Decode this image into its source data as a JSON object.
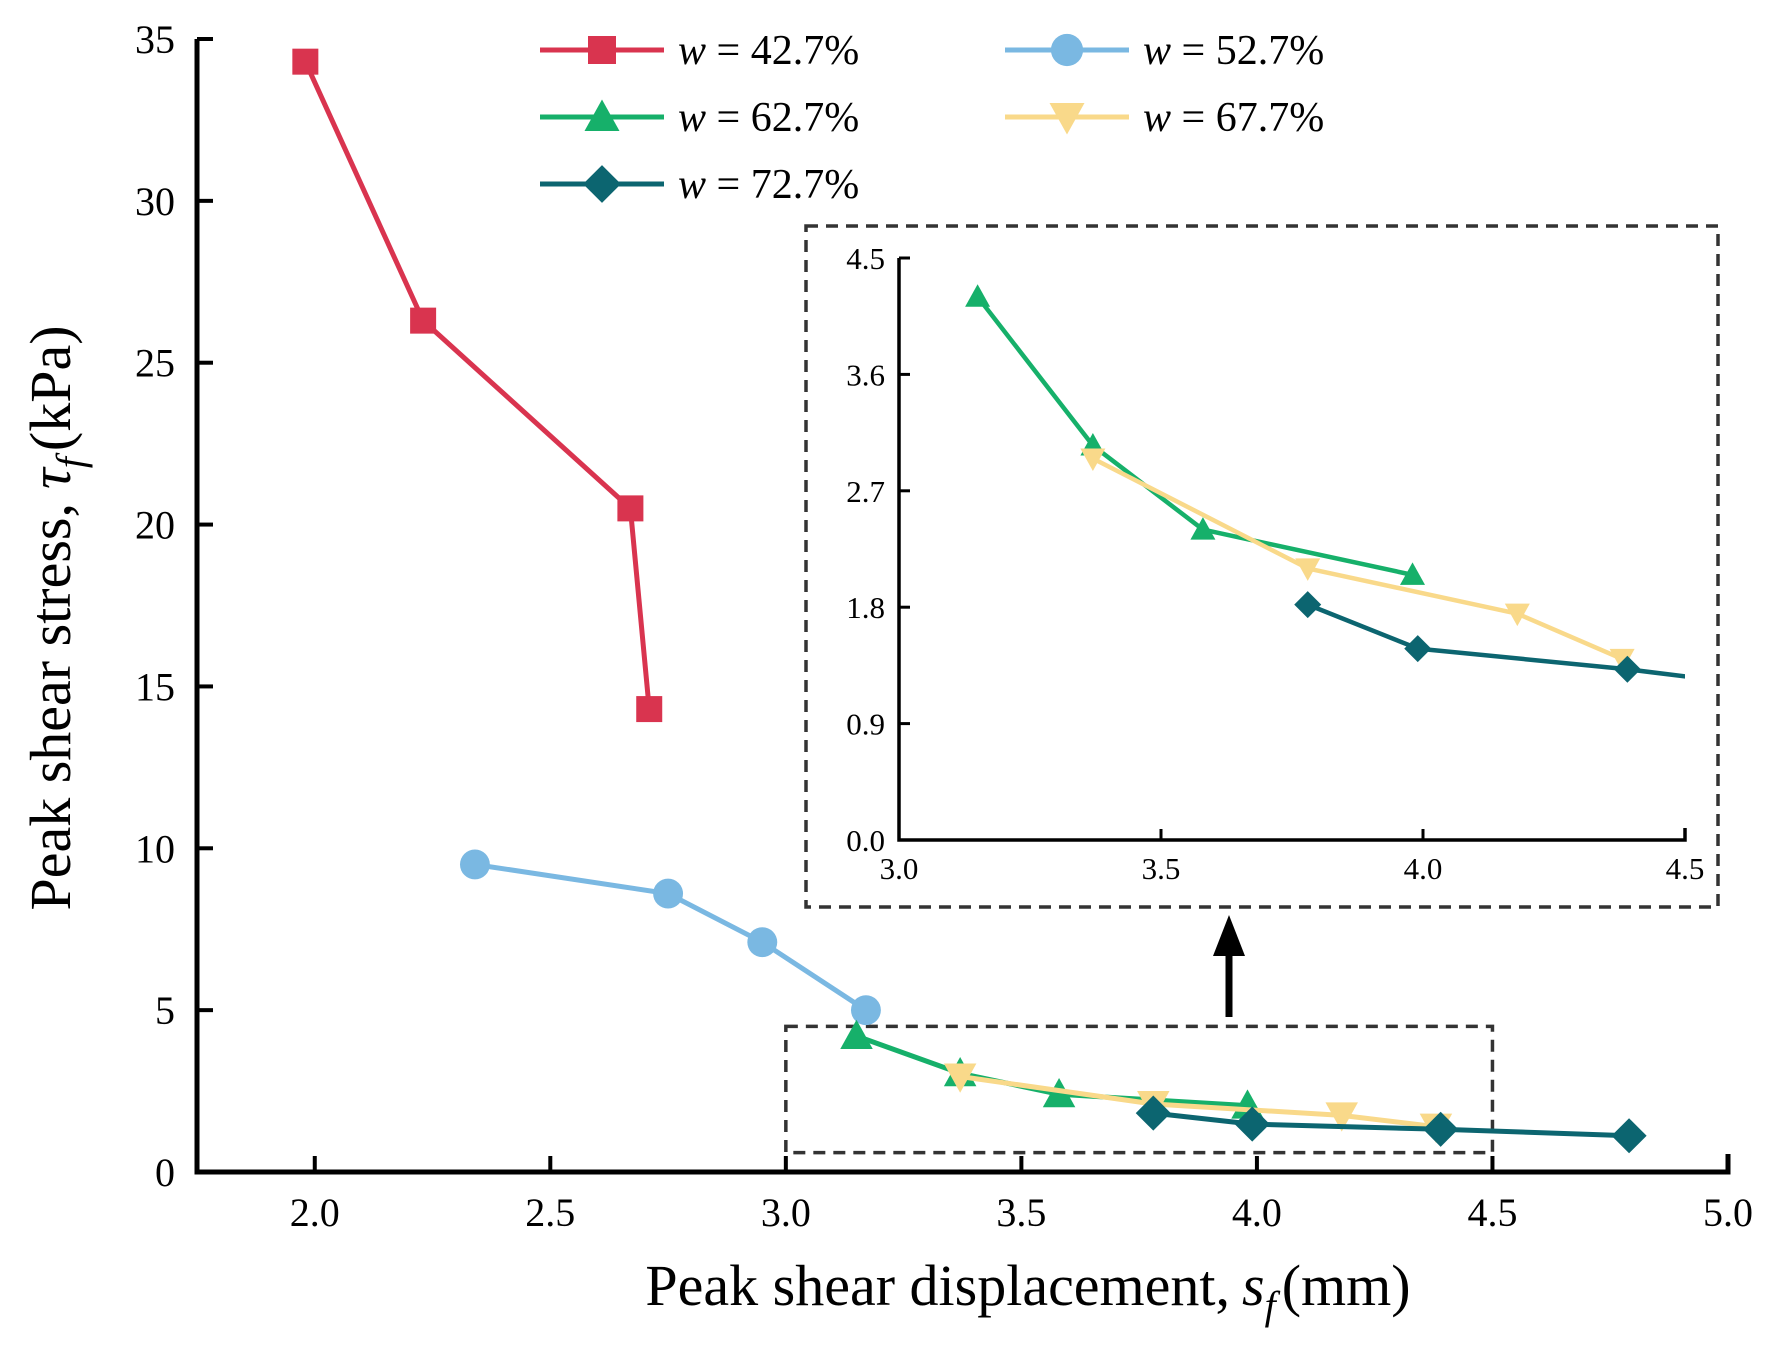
{
  "chart_data": {
    "type": "line",
    "xlabel": "Peak shear displacement,",
    "xlabel_symbol": "s",
    "xlabel_sub": "f",
    "xlabel_unit": "(mm)",
    "ylabel": "Peak shear stress,",
    "ylabel_symbol": "τ",
    "ylabel_sub": "f",
    "ylabel_unit": "(kPa)",
    "xlim": [
      1.75,
      5.0
    ],
    "ylim": [
      0,
      35
    ],
    "x_ticks": [
      "2.0",
      "2.5",
      "3.0",
      "3.5",
      "4.0",
      "4.5",
      "5.0"
    ],
    "y_ticks": [
      "0",
      "5",
      "10",
      "15",
      "20",
      "25",
      "30",
      "35"
    ],
    "legend_position": "top",
    "series": [
      {
        "name": "w = 42.7%",
        "symbol": "w",
        "value_text": " = 42.7%",
        "marker": "square",
        "color": "#d9344f",
        "x": [
          1.98,
          2.23,
          2.67,
          2.71
        ],
        "y": [
          34.3,
          26.3,
          20.5,
          14.3
        ]
      },
      {
        "name": "w = 52.7%",
        "symbol": "w",
        "value_text": " = 52.7%",
        "marker": "circle",
        "color": "#7ab8e2",
        "x": [
          2.34,
          2.75,
          2.95,
          3.17
        ],
        "y": [
          9.5,
          8.6,
          7.1,
          5.0
        ]
      },
      {
        "name": "w = 62.7%",
        "symbol": "w",
        "value_text": " = 62.7%",
        "marker": "triangle-up",
        "color": "#16b06a",
        "x": [
          3.15,
          3.37,
          3.58,
          3.98
        ],
        "y": [
          4.2,
          3.05,
          2.4,
          2.05
        ]
      },
      {
        "name": "w = 67.7%",
        "symbol": "w",
        "value_text": " = 67.7%",
        "marker": "triangle-down",
        "color": "#f9d98a",
        "x": [
          3.37,
          3.78,
          4.18,
          4.38
        ],
        "y": [
          2.95,
          2.1,
          1.75,
          1.4
        ]
      },
      {
        "name": "w = 72.7%",
        "symbol": "w",
        "value_text": " = 72.7%",
        "marker": "diamond",
        "color": "#0c6570",
        "x": [
          3.78,
          3.99,
          4.39,
          4.79
        ],
        "y": [
          1.82,
          1.48,
          1.32,
          1.12
        ]
      }
    ],
    "zoom_box": {
      "x": [
        3.0,
        4.5
      ],
      "y": [
        0.6,
        4.5
      ]
    },
    "inset": {
      "xlim": [
        3.0,
        4.5
      ],
      "ylim": [
        0.0,
        4.5
      ],
      "x_ticks": [
        "3.0",
        "3.5",
        "4.0",
        "4.5"
      ],
      "y_ticks": [
        "0.0",
        "0.9",
        "1.8",
        "2.7",
        "3.6",
        "4.5"
      ],
      "series_shown": [
        "w = 62.7%",
        "w = 67.7%",
        "w = 72.7%"
      ]
    }
  }
}
